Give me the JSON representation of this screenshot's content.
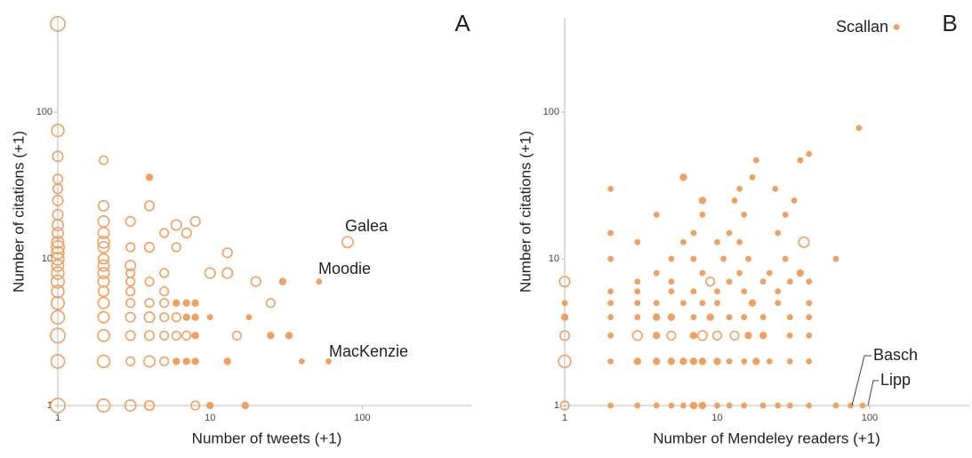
{
  "chart_data": [
    {
      "type": "scatter",
      "title": "A",
      "x_label": "Number of  tweets (+1)",
      "y_label": "Number of citations (+1)",
      "log_x": true,
      "log_y": true,
      "color": "#f0a060",
      "xlim": [
        1,
        520
      ],
      "ylim": [
        1,
        440
      ],
      "xticks": [
        1,
        10,
        100
      ],
      "yticks": [
        1,
        10,
        100
      ],
      "annotations": [
        "Galea",
        "Moodie",
        "MacKenzie"
      ],
      "x": [
        1,
        1,
        1,
        1,
        1,
        1,
        1,
        1,
        1,
        1,
        1,
        1,
        1,
        1,
        1,
        1,
        1,
        1,
        1,
        1,
        1,
        1,
        2,
        2,
        2,
        2,
        2,
        2,
        2,
        2,
        2,
        2,
        2,
        2,
        2,
        2,
        2,
        2,
        3,
        3,
        3,
        3,
        3,
        3,
        3,
        3,
        3,
        3,
        3,
        4,
        4,
        4,
        4,
        4,
        4,
        4,
        4,
        4,
        5,
        5,
        5,
        5,
        5,
        5,
        5,
        6,
        6,
        6,
        6,
        6,
        6,
        7,
        7,
        7,
        7,
        7,
        8,
        8,
        8,
        8,
        8,
        8,
        10,
        10,
        10,
        13,
        13,
        13,
        20,
        25,
        30,
        17,
        15,
        33,
        40,
        80,
        52,
        60,
        25,
        18
      ],
      "values": [
        1,
        2,
        3,
        4,
        5,
        6,
        7,
        8,
        9,
        10,
        11,
        12,
        13,
        15,
        17,
        20,
        25,
        30,
        35,
        50,
        75,
        400,
        1,
        2,
        3,
        4,
        5,
        6,
        7,
        8,
        9,
        10,
        12,
        13,
        15,
        18,
        23,
        47,
        1,
        2,
        3,
        4,
        5,
        6,
        7,
        8,
        9,
        12,
        18,
        1,
        2,
        3,
        4,
        5,
        7,
        12,
        23,
        36,
        2,
        3,
        4,
        5,
        6,
        8,
        15,
        2,
        3,
        4,
        5,
        17,
        12,
        2,
        3,
        4,
        5,
        15,
        1,
        2,
        3,
        4,
        5,
        18,
        1,
        8,
        4,
        2,
        8,
        11,
        7,
        5,
        7,
        1,
        3,
        3,
        2,
        13,
        7,
        2,
        3,
        4
      ],
      "sizes": [
        12,
        10,
        12,
        10,
        9,
        8,
        9,
        8,
        7,
        8,
        8,
        9,
        7,
        6,
        6,
        5,
        5,
        4,
        4,
        5,
        8,
        12,
        9,
        8,
        7,
        6,
        6,
        5,
        6,
        6,
        6,
        5,
        6,
        7,
        6,
        6,
        5,
        3,
        6,
        3,
        4,
        4,
        3,
        3,
        3,
        3,
        5,
        3,
        4,
        4,
        6,
        4,
        5,
        3,
        3,
        4,
        4,
        2,
        3,
        3,
        3,
        3,
        3,
        3,
        3,
        2,
        3,
        3,
        2,
        5,
        3,
        2,
        3,
        2,
        2,
        4,
        3,
        2,
        2,
        2,
        2,
        4,
        2,
        5,
        1,
        2,
        5,
        4,
        4,
        3,
        2,
        2,
        3,
        2,
        1,
        6,
        1,
        1,
        2,
        1
      ]
    },
    {
      "type": "scatter",
      "title": "B",
      "x_label": "Number of  Mendeley readers (+1)",
      "y_label": "Number of citations (+1)",
      "log_x": true,
      "log_y": true,
      "color": "#f0a060",
      "xlim": [
        1,
        450
      ],
      "ylim": [
        1,
        440
      ],
      "xticks": [
        1,
        10,
        100
      ],
      "yticks": [
        1,
        10,
        100
      ],
      "annotations": [
        "Scallan",
        "Basch",
        "Lipp"
      ],
      "x": [
        1,
        2,
        3,
        4,
        5,
        6,
        7,
        8,
        10,
        12,
        15,
        20,
        25,
        30,
        40,
        60,
        75,
        90,
        1,
        2,
        3,
        4,
        5,
        6,
        7,
        8,
        10,
        12,
        15,
        18,
        22,
        30,
        40,
        1,
        2,
        3,
        4,
        5,
        7,
        8,
        10,
        13,
        16,
        20,
        30,
        40,
        1,
        2,
        3,
        4,
        5,
        7,
        9,
        12,
        15,
        20,
        30,
        40,
        1,
        2,
        3,
        4,
        6,
        8,
        10,
        17,
        25,
        40,
        2,
        3,
        5,
        7,
        10,
        15,
        25,
        1,
        3,
        5,
        9,
        12,
        20,
        30,
        40,
        4,
        8,
        14,
        22,
        35,
        2,
        5,
        7,
        11,
        16,
        28,
        60,
        3,
        6,
        10,
        14,
        37,
        2,
        7,
        12,
        25,
        4,
        8,
        15,
        28,
        8,
        13,
        32,
        2,
        14,
        24,
        6,
        17,
        18,
        35,
        40,
        85,
        150
      ],
      "values": [
        1,
        1,
        1,
        1,
        1,
        1,
        1,
        1,
        1,
        1,
        1,
        1,
        1,
        1,
        1,
        1,
        1,
        1,
        2,
        2,
        2,
        2,
        2,
        2,
        2,
        2,
        2,
        2,
        2,
        2,
        2,
        2,
        2,
        3,
        3,
        3,
        3,
        3,
        3,
        3,
        3,
        3,
        3,
        3,
        3,
        3,
        4,
        4,
        4,
        4,
        4,
        4,
        4,
        4,
        4,
        4,
        4,
        4,
        5,
        5,
        5,
        5,
        5,
        5,
        5,
        5,
        5,
        5,
        6,
        6,
        6,
        6,
        6,
        6,
        6,
        7,
        7,
        7,
        7,
        7,
        7,
        7,
        7,
        8,
        8,
        8,
        8,
        8,
        10,
        10,
        10,
        10,
        10,
        10,
        10,
        13,
        13,
        13,
        13,
        13,
        15,
        15,
        15,
        15,
        20,
        20,
        20,
        20,
        25,
        25,
        25,
        30,
        30,
        30,
        36,
        36,
        47,
        47,
        52,
        78,
        380
      ],
      "sizes": [
        3,
        1,
        1,
        1,
        1,
        1,
        2,
        2,
        1,
        1,
        1,
        1,
        1,
        1,
        1,
        1,
        1,
        1,
        8,
        1,
        2,
        2,
        2,
        2,
        2,
        2,
        2,
        1,
        1,
        2,
        1,
        1,
        1,
        4,
        1,
        4,
        2,
        3,
        2,
        4,
        3,
        3,
        2,
        2,
        1,
        1,
        2,
        1,
        1,
        2,
        2,
        1,
        2,
        1,
        1,
        1,
        1,
        1,
        1,
        1,
        1,
        1,
        1,
        1,
        1,
        2,
        1,
        1,
        1,
        1,
        1,
        1,
        1,
        1,
        1,
        5,
        1,
        1,
        3,
        1,
        1,
        1,
        1,
        1,
        1,
        1,
        1,
        2,
        1,
        1,
        1,
        1,
        1,
        1,
        1,
        1,
        1,
        1,
        1,
        5,
        1,
        1,
        1,
        1,
        1,
        1,
        1,
        1,
        2,
        1,
        1,
        1,
        1,
        1,
        2,
        1,
        1,
        1,
        1,
        1,
        1
      ]
    }
  ]
}
